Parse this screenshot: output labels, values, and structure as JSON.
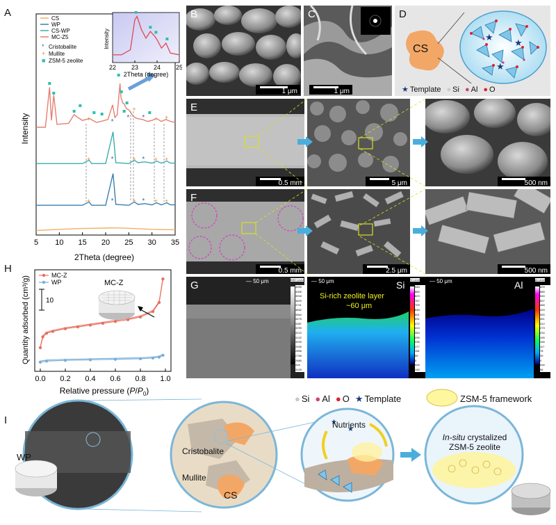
{
  "panels": {
    "A": "A",
    "B": "B",
    "C": "C",
    "D": "D",
    "E": "E",
    "F": "F",
    "G": "G",
    "H": "H",
    "I": "I"
  },
  "panel_a": {
    "legend": [
      "CS",
      "WP",
      "CS-WP",
      "MC-Z5"
    ],
    "legend_colors": [
      "#f0b060",
      "#3a7fb0",
      "#3aaeb0",
      "#e58070"
    ],
    "marker_legend": [
      {
        "symbol": "*",
        "label": "Cristobalite",
        "color": "#3a5fa0"
      },
      {
        "symbol": "+",
        "label": "Mullite",
        "color": "#e08a1c"
      },
      {
        "symbol": "■",
        "label": "ZSM-5 zeolite",
        "color": "#2cc0b0"
      }
    ]
  },
  "chart_data": [
    {
      "type": "line",
      "title": "",
      "xlabel": "2Theta (degree)",
      "ylabel": "Intensity",
      "xlim": [
        5,
        35
      ],
      "xticks": [
        5,
        10,
        15,
        20,
        25,
        30,
        35
      ],
      "series": [
        {
          "name": "MC-Z5",
          "color": "#e58070",
          "x": [
            5,
            7,
            7.9,
            8.3,
            8.8,
            9.5,
            12,
            13.2,
            14,
            15,
            16.5,
            18,
            19,
            20.5,
            21.5,
            22,
            22.5,
            23.1,
            23.3,
            23.7,
            24,
            24.5,
            25,
            26,
            26.8,
            28,
            29,
            30,
            31,
            32,
            33,
            34,
            35
          ],
          "y": [
            0.5,
            0.5,
            4.6,
            1.2,
            3.8,
            0.8,
            0.9,
            1.8,
            1.5,
            1.2,
            1.4,
            1.0,
            1.1,
            1.3,
            2.8,
            1.5,
            1.8,
            5.0,
            3.6,
            3.0,
            2.9,
            2.4,
            2.3,
            1.6,
            1.4,
            1.3,
            1.1,
            1.2,
            1.4,
            1.1,
            1.3,
            1.1,
            1.0
          ]
        },
        {
          "name": "CS-WP",
          "color": "#3aaeb0",
          "x": [
            5,
            15,
            16.4,
            17,
            20,
            21.6,
            22.2,
            25,
            26.2,
            27,
            28.5,
            30,
            31,
            32,
            33.2,
            34,
            35
          ],
          "y": [
            0.4,
            0.4,
            0.8,
            0.4,
            0.4,
            4.2,
            0.5,
            0.4,
            0.8,
            0.5,
            0.6,
            0.45,
            0.7,
            0.45,
            0.7,
            0.45,
            0.45
          ]
        },
        {
          "name": "WP",
          "color": "#3a7fb0",
          "x": [
            5,
            15,
            16.4,
            17,
            20,
            21.6,
            22.2,
            25,
            26.2,
            27,
            28.5,
            30,
            31,
            32,
            33.2,
            34,
            35
          ],
          "y": [
            0.4,
            0.4,
            0.8,
            0.4,
            0.4,
            4.2,
            0.5,
            0.4,
            0.8,
            0.5,
            0.6,
            0.45,
            0.7,
            0.45,
            0.7,
            0.45,
            0.45
          ]
        },
        {
          "name": "CS",
          "color": "#f0b060",
          "x": [
            5,
            10,
            15,
            20,
            22,
            25,
            30,
            35
          ],
          "y": [
            0.4,
            0.7,
            0.9,
            1.0,
            1.05,
            0.95,
            0.7,
            0.6
          ]
        }
      ],
      "legend": "top-left"
    },
    {
      "type": "line",
      "title": "",
      "xlabel": "2Theta (degree)",
      "ylabel": "Intensity",
      "xlim": [
        22,
        25
      ],
      "xticks": [
        22,
        23,
        24,
        25
      ],
      "series": [
        {
          "name": "MC-Z5",
          "color": "#e05060",
          "x": [
            22,
            22.4,
            22.8,
            23.0,
            23.1,
            23.3,
            23.5,
            23.7,
            23.9,
            24.0,
            24.2,
            24.4,
            24.6,
            25
          ],
          "y": [
            0.3,
            0.3,
            0.6,
            2.4,
            2.6,
            1.8,
            1.3,
            1.7,
            1.4,
            1.2,
            0.7,
            1.0,
            0.4,
            0.3
          ]
        }
      ]
    },
    {
      "type": "line",
      "title": "",
      "xlabel": "Relative pressure (P/P0)",
      "ylabel": "Quantity adsorbed (cm³/g)",
      "xlim": [
        0,
        1
      ],
      "xticks": [
        0.0,
        0.2,
        0.4,
        0.6,
        0.8,
        1.0
      ],
      "scale_bar_label": "10",
      "series": [
        {
          "name": "MC-Z",
          "color": "#e87060",
          "x": [
            0,
            0.02,
            0.05,
            0.1,
            0.2,
            0.3,
            0.4,
            0.5,
            0.6,
            0.7,
            0.8,
            0.9,
            0.95,
            0.98
          ],
          "y": [
            10,
            16,
            18,
            19,
            20.5,
            21.5,
            22.5,
            23.5,
            24.5,
            25.5,
            27,
            30,
            35,
            48
          ]
        },
        {
          "name": "WP",
          "color": "#7aaed8",
          "x": [
            0,
            0.05,
            0.2,
            0.4,
            0.6,
            0.8,
            0.9,
            0.95,
            0.98
          ],
          "y": [
            2,
            2.6,
            3.0,
            3.3,
            3.6,
            3.9,
            4.3,
            4.8,
            5.8
          ]
        }
      ],
      "legend": "top-left"
    }
  ],
  "panel_c_scale": "1 μm",
  "panel_b_scale": "1 μm",
  "panel_d": {
    "cs_label": "CS",
    "legend": [
      {
        "symbol": "★",
        "label": "Template",
        "color": "#1c3a7a"
      },
      {
        "symbol": "●",
        "label": "Si",
        "color": "#cccccc"
      },
      {
        "symbol": "●",
        "label": "Al",
        "color": "#d04080"
      },
      {
        "symbol": "●",
        "label": "O",
        "color": "#e02030"
      }
    ]
  },
  "panel_e_scales": [
    "0.5 mm",
    "5 μm",
    "500 nm"
  ],
  "panel_f_scales": [
    "0.5 mm",
    "2.5 μm",
    "500 nm"
  ],
  "panel_g": {
    "scales": [
      "50 μm",
      "50 μm",
      "50 μm"
    ],
    "map_labels": [
      "Si",
      "Al"
    ],
    "annotation": "Si-rich zeolite layer",
    "annotation2": "~60 μm",
    "bse_label": "BSE Level",
    "si_label": "Si Level",
    "al_label": "Al Level",
    "bse_values": [
      "4095",
      "4006",
      "3918",
      "3829",
      "3741",
      "3652",
      "3564",
      "3475",
      "3387",
      "3299",
      "3210",
      "3122",
      "3033",
      "2945",
      "2856",
      "2768",
      "2680"
    ],
    "si_values": [
      "946",
      "885",
      "823",
      "767",
      "709",
      "648",
      "591",
      "531",
      "472",
      "413",
      "354",
      "295",
      "236",
      "177",
      "118",
      "59",
      "0"
    ],
    "al_values": [
      "625",
      "585",
      "546",
      "507",
      "468",
      "429",
      "390",
      "351",
      "312",
      "273",
      "234",
      "195",
      "156",
      "117",
      "78",
      "39",
      "0"
    ],
    "ave_labels": [
      "Ave",
      "3133",
      "Ave",
      "145",
      "Ave",
      "56"
    ]
  },
  "panel_h": {
    "legend": [
      "MC-Z",
      "WP"
    ],
    "inset_label": "MC-Z",
    "xlabel_pre": "Relative pressure (",
    "xlabel_em": "P",
    "xlabel_mid": "/",
    "xlabel_em2": "P",
    "xlabel_sub": "0",
    "xlabel_post": ")",
    "ylabel": "Quantity adsorbed (cm³/g)"
  },
  "panel_i": {
    "legend": [
      {
        "symbol": "●",
        "label": "Si",
        "color": "#c8c8c8"
      },
      {
        "symbol": "●",
        "label": "Al",
        "color": "#d04080"
      },
      {
        "symbol": "●",
        "label": "O",
        "color": "#e02030"
      },
      {
        "symbol": "★",
        "label": "Template",
        "color": "#1c3a7a"
      }
    ],
    "framework": "ZSM-5 framework",
    "wp": "WP",
    "cristobalite": "Cristobalite",
    "mullite": "Mullite",
    "cs": "CS",
    "nutrients": "Nutrients",
    "result_em": "In-situ",
    "result_line1": " crystalized",
    "result_line2": "ZSM-5 zeolite"
  }
}
